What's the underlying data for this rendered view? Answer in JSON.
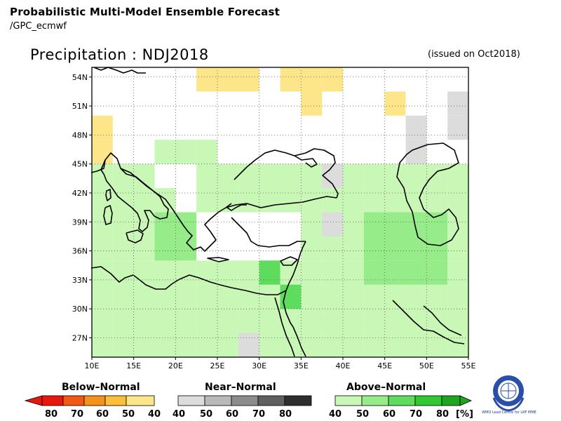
{
  "header": {
    "title": "Probabilistic Multi-Model Ensemble Forecast",
    "subtitle": "/GPC_ecmwf"
  },
  "map": {
    "title": "Precipitation : NDJ2018",
    "issued": "(issued on Oct2018)",
    "lon_range": [
      10,
      55
    ],
    "lat_range": [
      25,
      55
    ],
    "lon_ticks": [
      "10E",
      "15E",
      "20E",
      "25E",
      "30E",
      "35E",
      "40E",
      "45E",
      "50E",
      "55E"
    ],
    "lat_ticks": [
      "27N",
      "30N",
      "33N",
      "36N",
      "39N",
      "42N",
      "45N",
      "48N",
      "51N",
      "54N"
    ],
    "grid_lines": "dotted",
    "colors": {
      "above_40": "#c8f7b6",
      "above_50": "#96ec88",
      "above_60": "#5edc5e",
      "above_70": "#34c734",
      "above_80": "#1fa51f",
      "near_40": "#dcdcdc",
      "near_50": "#b9b9b9",
      "near_60": "#8c8c8c",
      "near_70": "#5f5f5f",
      "near_80": "#2e2e2e",
      "below_40": "#fde68a",
      "below_50": "#fbbf3a",
      "below_60": "#f5921b",
      "below_70": "#f05a14",
      "below_80": "#e8170e",
      "coast": "#000000"
    }
  },
  "legend": {
    "below": {
      "title": "Below–Normal",
      "labels": [
        "80",
        "70",
        "60",
        "50",
        "40"
      ]
    },
    "near": {
      "title": "Near–Normal",
      "labels": [
        "40",
        "50",
        "60",
        "70",
        "80"
      ]
    },
    "above": {
      "title": "Above–Normal",
      "labels": [
        "40",
        "50",
        "60",
        "70",
        "80"
      ],
      "unit": "[%]"
    }
  },
  "logo": {
    "name": "wmo-emblem",
    "caption": "WMO Lead Centre for LRF MME"
  }
}
